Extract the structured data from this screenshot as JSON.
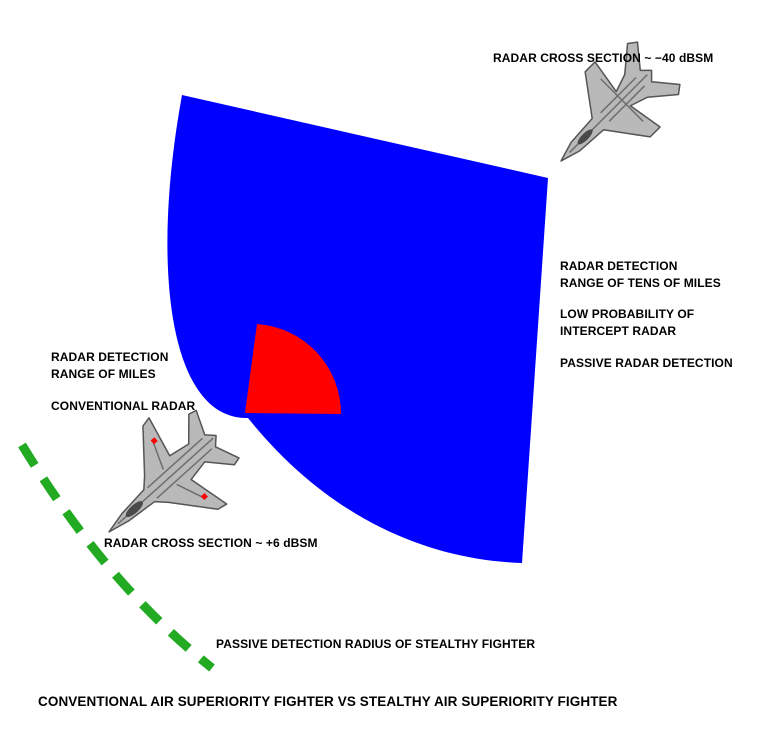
{
  "colors": {
    "stealth_radar_sector": "#0000ff",
    "conventional_radar_sector": "#ff0000",
    "passive_detection_arc": "#22aa22",
    "aircraft_fill": "#b9b9b9",
    "background": "#ffffff"
  },
  "labels": {
    "stealth_rcs": "RADAR CROSS SECTION ~ −40 dBSM",
    "stealth_range_line1": "RADAR DETECTION",
    "stealth_range_line2": "RANGE OF TENS OF MILES",
    "lpi_line1": "LOW PROBABILITY OF",
    "lpi_line2": "INTERCEPT RADAR",
    "passive_radar": "PASSIVE RADAR DETECTION",
    "conv_range_line1": "RADAR DETECTION",
    "conv_range_line2": "RANGE OF MILES",
    "conv_radar": "CONVENTIONAL RADAR",
    "conv_rcs": "RADAR CROSS SECTION ~ +6 dBSM",
    "passive_radius": "PASSIVE DETECTION RADIUS OF STEALTHY FIGHTER",
    "caption": "CONVENTIONAL AIR SUPERIORITY FIGHTER VS STEALTHY AIR SUPERIORITY FIGHTER"
  },
  "icons": {
    "stealth_fighter": "stealth-fighter-icon",
    "conventional_fighter": "conventional-fighter-icon"
  }
}
